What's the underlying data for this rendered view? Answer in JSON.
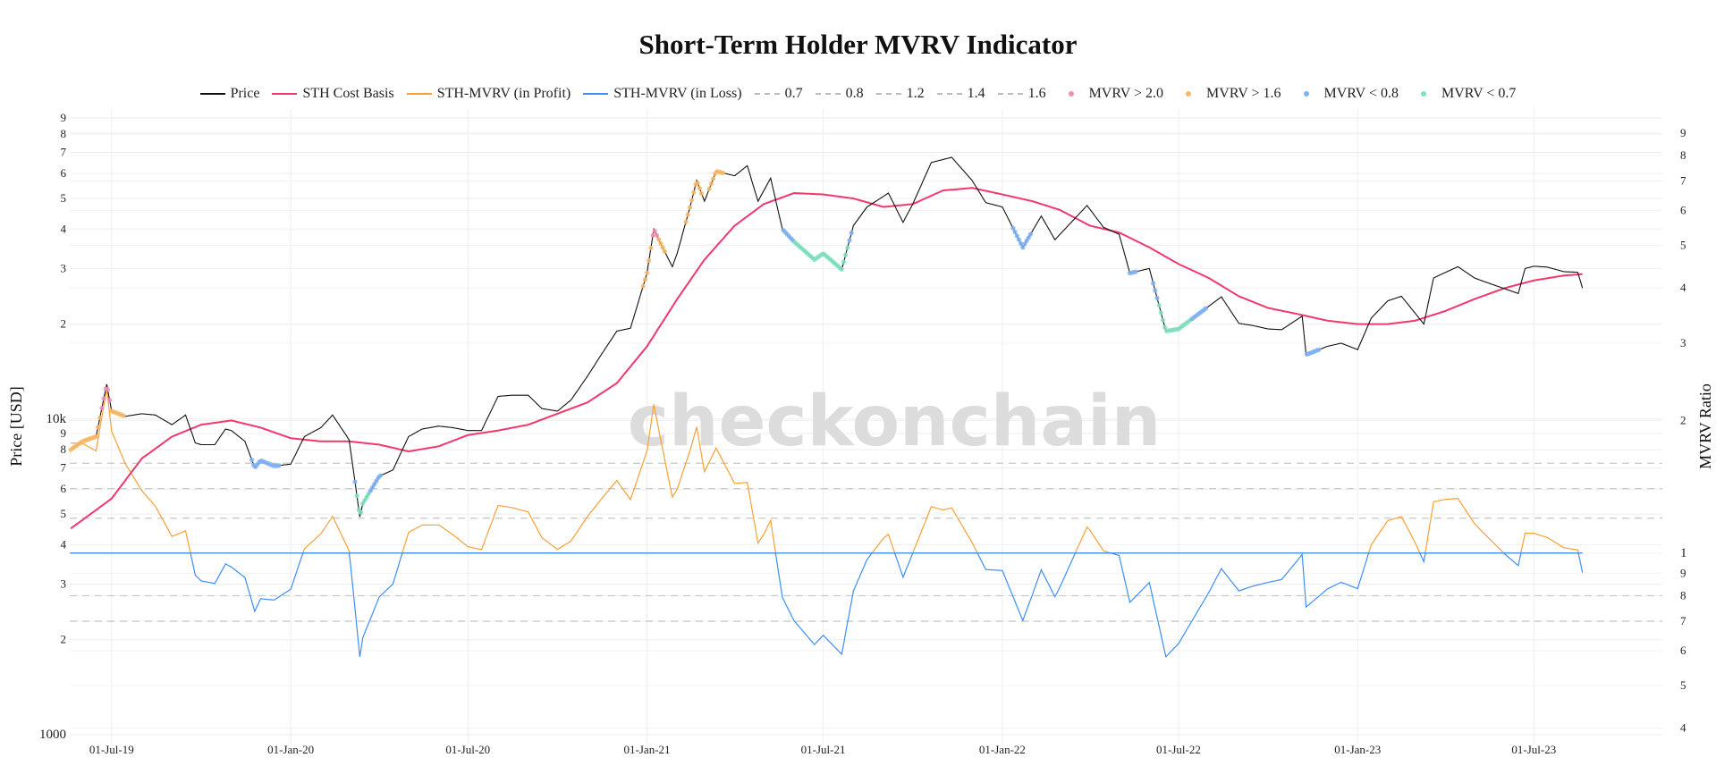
{
  "chart_data": {
    "type": "line",
    "title": "Short-Term Holder MVRV Indicator",
    "watermark": "checkonchain",
    "y_left": {
      "label": "Price [USD]",
      "scale": "log",
      "range": [
        937,
        96000
      ],
      "ticks": [
        {
          "v": 1000,
          "t": "1000"
        },
        {
          "v": 2000,
          "t": "2"
        },
        {
          "v": 3000,
          "t": "3"
        },
        {
          "v": 4000,
          "t": "4"
        },
        {
          "v": 5000,
          "t": "5"
        },
        {
          "v": 6000,
          "t": "6"
        },
        {
          "v": 7000,
          "t": "7"
        },
        {
          "v": 8000,
          "t": "8"
        },
        {
          "v": 9000,
          "t": "9"
        },
        {
          "v": 10000,
          "t": "10k"
        },
        {
          "v": 20000,
          "t": "2"
        },
        {
          "v": 30000,
          "t": "3"
        },
        {
          "v": 40000,
          "t": "4"
        },
        {
          "v": 50000,
          "t": "5"
        },
        {
          "v": 60000,
          "t": "6"
        },
        {
          "v": 70000,
          "t": "7"
        },
        {
          "v": 80000,
          "t": "8"
        },
        {
          "v": 90000,
          "t": "9"
        }
      ]
    },
    "y_right": {
      "label": "MVRV Ratio",
      "scale": "log",
      "range": [
        0.369,
        10.2
      ],
      "ticks": [
        {
          "v": 0.4,
          "t": "4"
        },
        {
          "v": 0.5,
          "t": "5"
        },
        {
          "v": 0.6,
          "t": "6"
        },
        {
          "v": 0.7,
          "t": "7"
        },
        {
          "v": 0.8,
          "t": "8"
        },
        {
          "v": 0.9,
          "t": "9"
        },
        {
          "v": 1,
          "t": "1"
        },
        {
          "v": 2,
          "t": "2"
        },
        {
          "v": 3,
          "t": "3"
        },
        {
          "v": 4,
          "t": "4"
        },
        {
          "v": 5,
          "t": "5"
        },
        {
          "v": 6,
          "t": "6"
        },
        {
          "v": 7,
          "t": "7"
        },
        {
          "v": 8,
          "t": "8"
        },
        {
          "v": 9,
          "t": "9"
        }
      ]
    },
    "x": {
      "range": [
        "2019-05-19",
        "2023-11-10"
      ],
      "ticks": [
        {
          "d": "2019-07-01",
          "t": "01-Jul-19"
        },
        {
          "d": "2020-01-01",
          "t": "01-Jan-20"
        },
        {
          "d": "2020-07-01",
          "t": "01-Jul-20"
        },
        {
          "d": "2021-01-01",
          "t": "01-Jan-21"
        },
        {
          "d": "2021-07-01",
          "t": "01-Jul-21"
        },
        {
          "d": "2022-01-01",
          "t": "01-Jan-22"
        },
        {
          "d": "2022-07-01",
          "t": "01-Jul-22"
        },
        {
          "d": "2023-01-01",
          "t": "01-Jan-23"
        },
        {
          "d": "2023-07-01",
          "t": "01-Jul-23"
        }
      ]
    },
    "grid": true,
    "legend_placement": "top-center",
    "colors": {
      "price": "#111111",
      "cost_basis": "#f0386b",
      "profit": "#f7a035",
      "loss": "#3d8ef5",
      "gt2": "#f08fb0",
      "gt16": "#f7b866",
      "lt08": "#7fb2f5",
      "lt07": "#7fe0bf",
      "band": "#c8c8c8"
    },
    "legend": [
      {
        "label": "Price",
        "kind": "line",
        "color": "#111111"
      },
      {
        "label": "STH Cost Basis",
        "kind": "line",
        "color": "#f0386b"
      },
      {
        "label": "STH-MVRV (in Profit)",
        "kind": "line",
        "color": "#f7a035"
      },
      {
        "label": "STH-MVRV (in Loss)",
        "kind": "line",
        "color": "#3d8ef5"
      },
      {
        "label": "0.7",
        "kind": "dash",
        "color": "#c8c8c8"
      },
      {
        "label": "0.8",
        "kind": "dash",
        "color": "#c8c8c8"
      },
      {
        "label": "1.2",
        "kind": "dash",
        "color": "#c8c8c8"
      },
      {
        "label": "1.4",
        "kind": "dash",
        "color": "#c8c8c8"
      },
      {
        "label": "1.6",
        "kind": "dash",
        "color": "#c8c8c8"
      },
      {
        "label": "MVRV > 2.0",
        "kind": "dot",
        "color": "#f08fb0"
      },
      {
        "label": "MVRV > 1.6",
        "kind": "dot",
        "color": "#f7b866"
      },
      {
        "label": "MVRV < 0.8",
        "kind": "dot",
        "color": "#7fb2f5"
      },
      {
        "label": "MVRV < 0.7",
        "kind": "dot",
        "color": "#7fe0bf"
      }
    ],
    "bands": [
      0.7,
      0.8,
      1.2,
      1.4,
      1.6
    ],
    "series": [
      {
        "name": "Price",
        "axis": "left",
        "points": [
          [
            "2019-05-20",
            8000
          ],
          [
            "2019-06-01",
            8500
          ],
          [
            "2019-06-15",
            8800
          ],
          [
            "2019-06-26",
            12900
          ],
          [
            "2019-07-01",
            10600
          ],
          [
            "2019-07-15",
            10200
          ],
          [
            "2019-08-01",
            10400
          ],
          [
            "2019-08-15",
            10300
          ],
          [
            "2019-09-01",
            9600
          ],
          [
            "2019-09-15",
            10300
          ],
          [
            "2019-09-25",
            8400
          ],
          [
            "2019-10-01",
            8300
          ],
          [
            "2019-10-15",
            8300
          ],
          [
            "2019-10-26",
            9300
          ],
          [
            "2019-11-01",
            9200
          ],
          [
            "2019-11-15",
            8500
          ],
          [
            "2019-11-25",
            7000
          ],
          [
            "2019-12-01",
            7400
          ],
          [
            "2019-12-15",
            7100
          ],
          [
            "2020-01-01",
            7200
          ],
          [
            "2020-01-15",
            8800
          ],
          [
            "2020-02-01",
            9400
          ],
          [
            "2020-02-13",
            10300
          ],
          [
            "2020-03-01",
            8600
          ],
          [
            "2020-03-12",
            4900
          ],
          [
            "2020-03-15",
            5400
          ],
          [
            "2020-04-01",
            6600
          ],
          [
            "2020-04-15",
            6900
          ],
          [
            "2020-05-01",
            8800
          ],
          [
            "2020-05-15",
            9300
          ],
          [
            "2020-06-01",
            9500
          ],
          [
            "2020-06-15",
            9400
          ],
          [
            "2020-07-01",
            9200
          ],
          [
            "2020-07-15",
            9200
          ],
          [
            "2020-08-01",
            11800
          ],
          [
            "2020-08-15",
            11900
          ],
          [
            "2020-09-01",
            11900
          ],
          [
            "2020-09-15",
            10800
          ],
          [
            "2020-10-01",
            10600
          ],
          [
            "2020-10-15",
            11500
          ],
          [
            "2020-11-01",
            13700
          ],
          [
            "2020-11-15",
            16000
          ],
          [
            "2020-12-01",
            19000
          ],
          [
            "2020-12-15",
            19400
          ],
          [
            "2021-01-01",
            29000
          ],
          [
            "2021-01-08",
            40000
          ],
          [
            "2021-01-15",
            36000
          ],
          [
            "2021-01-27",
            30400
          ],
          [
            "2021-02-01",
            33500
          ],
          [
            "2021-02-15",
            48000
          ],
          [
            "2021-02-21",
            57000
          ],
          [
            "2021-03-01",
            49000
          ],
          [
            "2021-03-13",
            61000
          ],
          [
            "2021-04-01",
            59000
          ],
          [
            "2021-04-14",
            63500
          ],
          [
            "2021-04-25",
            49000
          ],
          [
            "2021-05-08",
            58000
          ],
          [
            "2021-05-20",
            40000
          ],
          [
            "2021-06-01",
            36500
          ],
          [
            "2021-06-22",
            32000
          ],
          [
            "2021-07-01",
            33500
          ],
          [
            "2021-07-20",
            29800
          ],
          [
            "2021-08-01",
            41000
          ],
          [
            "2021-08-15",
            47000
          ],
          [
            "2021-09-06",
            52000
          ],
          [
            "2021-09-21",
            42000
          ],
          [
            "2021-10-01",
            48000
          ],
          [
            "2021-10-20",
            65000
          ],
          [
            "2021-11-10",
            67500
          ],
          [
            "2021-12-01",
            57000
          ],
          [
            "2021-12-15",
            48500
          ],
          [
            "2022-01-01",
            47000
          ],
          [
            "2022-01-22",
            35000
          ],
          [
            "2022-02-10",
            44000
          ],
          [
            "2022-02-24",
            37000
          ],
          [
            "2022-03-29",
            47500
          ],
          [
            "2022-04-15",
            40500
          ],
          [
            "2022-05-01",
            38500
          ],
          [
            "2022-05-12",
            29000
          ],
          [
            "2022-06-01",
            30000
          ],
          [
            "2022-06-18",
            19000
          ],
          [
            "2022-07-01",
            19300
          ],
          [
            "2022-07-15",
            20800
          ],
          [
            "2022-08-14",
            24400
          ],
          [
            "2022-09-01",
            20100
          ],
          [
            "2022-09-15",
            19800
          ],
          [
            "2022-10-01",
            19300
          ],
          [
            "2022-10-15",
            19200
          ],
          [
            "2022-11-05",
            21200
          ],
          [
            "2022-11-09",
            16000
          ],
          [
            "2022-12-01",
            17000
          ],
          [
            "2022-12-15",
            17400
          ],
          [
            "2023-01-01",
            16600
          ],
          [
            "2023-01-15",
            20900
          ],
          [
            "2023-02-01",
            23700
          ],
          [
            "2023-02-15",
            24500
          ],
          [
            "2023-03-10",
            20000
          ],
          [
            "2023-03-20",
            28000
          ],
          [
            "2023-04-14",
            30400
          ],
          [
            "2023-05-01",
            28000
          ],
          [
            "2023-05-15",
            27000
          ],
          [
            "2023-06-15",
            25000
          ],
          [
            "2023-06-22",
            30000
          ],
          [
            "2023-07-01",
            30500
          ],
          [
            "2023-07-15",
            30300
          ],
          [
            "2023-08-01",
            29300
          ],
          [
            "2023-08-15",
            29200
          ],
          [
            "2023-08-20",
            26000
          ]
        ]
      },
      {
        "name": "STH Cost Basis",
        "axis": "left",
        "points": [
          [
            "2019-05-20",
            4500
          ],
          [
            "2019-07-01",
            5600
          ],
          [
            "2019-08-01",
            7500
          ],
          [
            "2019-09-01",
            8800
          ],
          [
            "2019-10-01",
            9600
          ],
          [
            "2019-11-01",
            9900
          ],
          [
            "2019-12-01",
            9400
          ],
          [
            "2020-01-01",
            8700
          ],
          [
            "2020-02-01",
            8500
          ],
          [
            "2020-03-01",
            8500
          ],
          [
            "2020-04-01",
            8300
          ],
          [
            "2020-05-01",
            7900
          ],
          [
            "2020-06-01",
            8200
          ],
          [
            "2020-07-01",
            8900
          ],
          [
            "2020-08-01",
            9200
          ],
          [
            "2020-09-01",
            9600
          ],
          [
            "2020-10-01",
            10400
          ],
          [
            "2020-11-01",
            11300
          ],
          [
            "2020-12-01",
            13000
          ],
          [
            "2021-01-01",
            17000
          ],
          [
            "2021-02-01",
            24000
          ],
          [
            "2021-03-01",
            32000
          ],
          [
            "2021-04-01",
            41000
          ],
          [
            "2021-05-01",
            48000
          ],
          [
            "2021-06-01",
            52000
          ],
          [
            "2021-07-01",
            51500
          ],
          [
            "2021-08-01",
            50000
          ],
          [
            "2021-09-01",
            47000
          ],
          [
            "2021-10-01",
            48000
          ],
          [
            "2021-11-01",
            53000
          ],
          [
            "2021-12-01",
            54000
          ],
          [
            "2022-01-01",
            51500
          ],
          [
            "2022-02-01",
            49000
          ],
          [
            "2022-03-01",
            46000
          ],
          [
            "2022-04-01",
            41000
          ],
          [
            "2022-05-01",
            39000
          ],
          [
            "2022-06-01",
            35000
          ],
          [
            "2022-07-01",
            31000
          ],
          [
            "2022-08-01",
            28000
          ],
          [
            "2022-09-01",
            24500
          ],
          [
            "2022-10-01",
            22500
          ],
          [
            "2022-11-01",
            21500
          ],
          [
            "2022-12-01",
            20500
          ],
          [
            "2023-01-01",
            20000
          ],
          [
            "2023-02-01",
            20000
          ],
          [
            "2023-03-01",
            20500
          ],
          [
            "2023-04-01",
            22000
          ],
          [
            "2023-05-01",
            24000
          ],
          [
            "2023-06-01",
            26000
          ],
          [
            "2023-07-01",
            27500
          ],
          [
            "2023-08-01",
            28500
          ],
          [
            "2023-08-20",
            28800
          ]
        ]
      }
    ]
  }
}
